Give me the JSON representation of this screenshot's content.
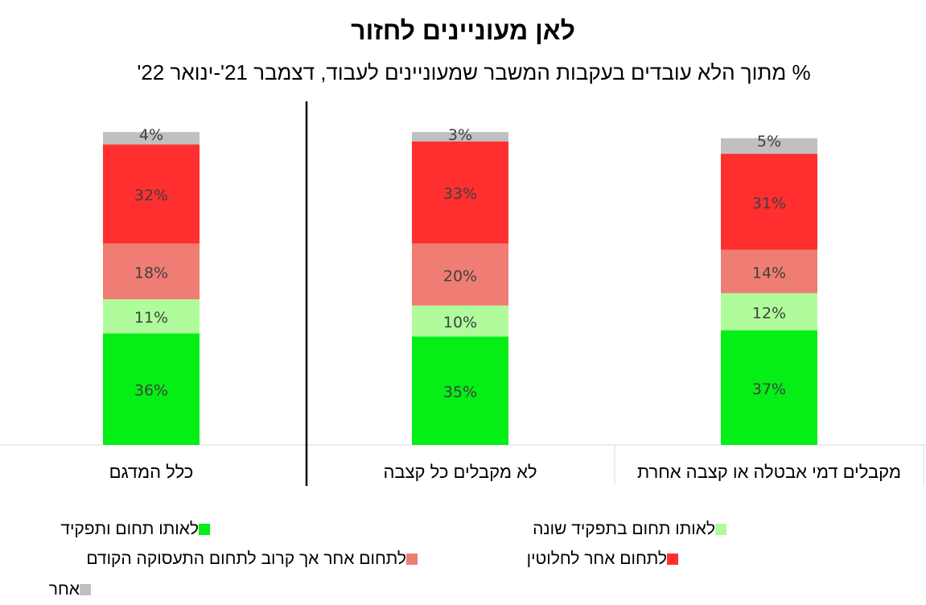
{
  "chart_data": {
    "type": "bar",
    "stacked": true,
    "title": "לאן מעוניינים לחזור",
    "subtitle": "% מתוך הלא עובדים בעקבות המשבר שמעוניינים לעבוד, דצמבר 21'-ינואר 22'",
    "categories": [
      "מקבלים דמי אבטלה או קצבה אחרת",
      "לא מקבלים כל קצבה",
      "כלל המדגם"
    ],
    "ylim": [
      0,
      100
    ],
    "series": [
      {
        "name": "לאותו תחום ותפקיד",
        "color": "#05ee16",
        "values": [
          37,
          35,
          36
        ],
        "labels": [
          "37%",
          "35%",
          "36%"
        ]
      },
      {
        "name": "לאותו תחום בתפקיד שונה",
        "color": "#b0fc9c",
        "values": [
          12,
          10,
          11
        ],
        "labels": [
          "12%",
          "10%",
          "11%"
        ]
      },
      {
        "name": "לתחום אחר אך קרוב לתחום התעסוקה הקודם",
        "color": "#f07d73",
        "values": [
          14,
          20,
          18
        ],
        "labels": [
          "14%",
          "20%",
          "18%"
        ]
      },
      {
        "name": "לתחום אחר לחלוטין",
        "color": "#ff2f2f",
        "values": [
          31,
          33,
          32
        ],
        "labels": [
          "31%",
          "33%",
          "32%"
        ]
      },
      {
        "name": "אחר",
        "color": "#c0c0c0",
        "values": [
          5,
          3,
          4
        ],
        "labels": [
          "5%",
          "3%",
          "4%"
        ]
      }
    ],
    "legend": "bottom",
    "grid": false
  }
}
